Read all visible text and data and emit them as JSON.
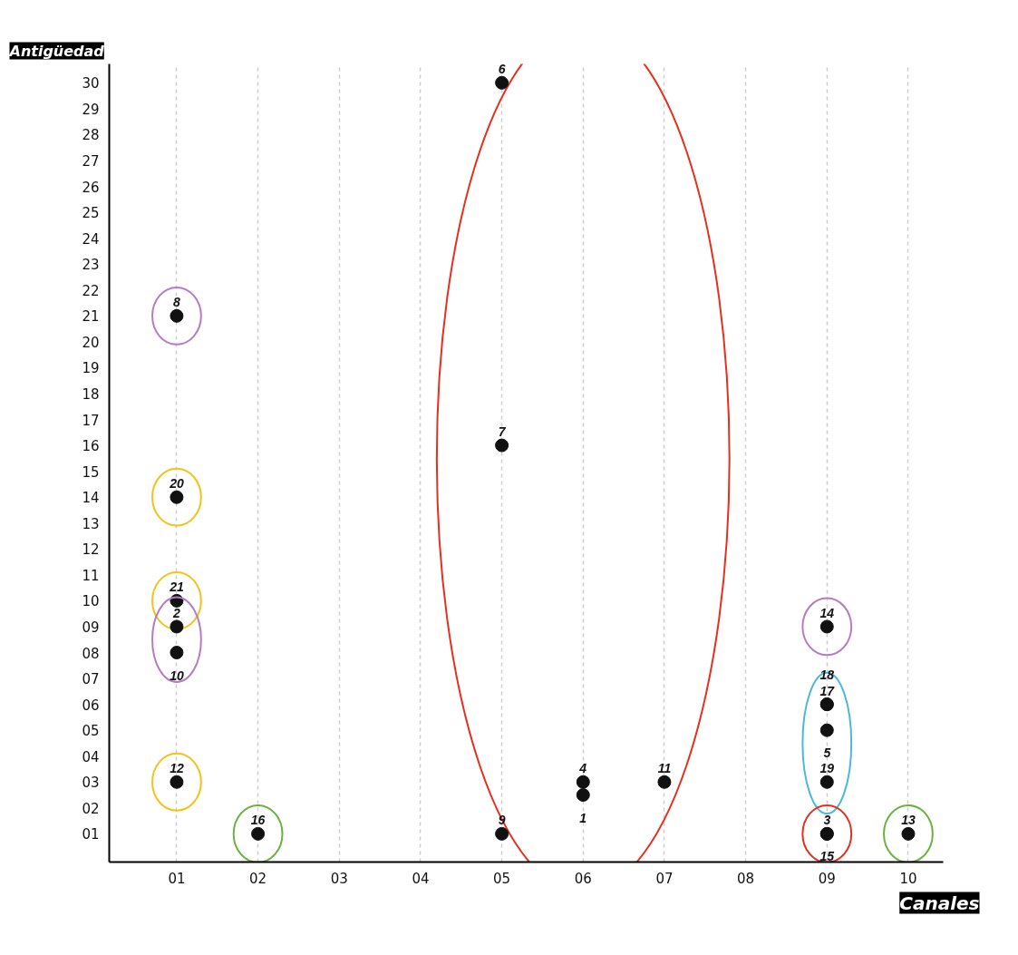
{
  "chart_data": {
    "type": "scatter",
    "xlabel": "Canales",
    "ylabel": "Antigüedad",
    "marker": "circle",
    "grid": "x",
    "xlim": [
      0.17,
      10.43
    ],
    "ylim": [
      -0.09,
      30.73
    ],
    "xticks": [
      {
        "value": 1,
        "label": "01"
      },
      {
        "value": 2,
        "label": "02"
      },
      {
        "value": 3,
        "label": "03"
      },
      {
        "value": 4,
        "label": "04"
      },
      {
        "value": 5,
        "label": "05"
      },
      {
        "value": 6,
        "label": "06"
      },
      {
        "value": 7,
        "label": "07"
      },
      {
        "value": 8,
        "label": "08"
      },
      {
        "value": 9,
        "label": "09"
      },
      {
        "value": 10,
        "label": "10"
      }
    ],
    "yticks": [
      {
        "value": 1,
        "label": "01"
      },
      {
        "value": 2,
        "label": "02"
      },
      {
        "value": 3,
        "label": "03"
      },
      {
        "value": 4,
        "label": "04"
      },
      {
        "value": 5,
        "label": "05"
      },
      {
        "value": 6,
        "label": "06"
      },
      {
        "value": 7,
        "label": "07"
      },
      {
        "value": 8,
        "label": "08"
      },
      {
        "value": 9,
        "label": "09"
      },
      10,
      11,
      12,
      13,
      14,
      15,
      16,
      17,
      18,
      19,
      20,
      21,
      22,
      23,
      24,
      25,
      26,
      27,
      28,
      29,
      30
    ],
    "series": [
      {
        "color": "#111111",
        "x": [
          1
        ],
        "values": [
          21
        ]
      },
      {
        "color": "#111111",
        "x": [
          1
        ],
        "values": [
          14
        ]
      },
      {
        "color": "#111111",
        "x": [
          1
        ],
        "values": [
          10
        ]
      },
      {
        "color": "#111111",
        "x": [
          1,
          1
        ],
        "values": [
          9,
          8
        ]
      },
      {
        "color": "#111111",
        "x": [
          1
        ],
        "values": [
          3
        ]
      },
      {
        "color": "#111111",
        "x": [
          2
        ],
        "values": [
          1
        ]
      },
      {
        "color": "#111111",
        "x": [
          5,
          5,
          5,
          6,
          6,
          7
        ],
        "values": [
          30,
          16,
          1,
          3,
          2.5,
          3
        ]
      },
      {
        "color": "#111111",
        "x": [
          9
        ],
        "values": [
          9
        ]
      },
      {
        "color": "#111111",
        "x": [
          9,
          9,
          9,
          9
        ],
        "values": [
          6,
          6,
          5,
          3
        ]
      },
      {
        "color": "#111111",
        "x": [
          9,
          9
        ],
        "values": [
          1,
          1
        ]
      },
      {
        "color": "#111111",
        "x": [
          10
        ],
        "values": [
          1
        ]
      }
    ],
    "annotations": [
      {
        "text": "8",
        "x": 1,
        "y": 21
      },
      {
        "text": "20",
        "x": 1,
        "y": 14
      },
      {
        "text": "21",
        "x": 1,
        "y": 10
      },
      {
        "text": "2",
        "x": 1,
        "y": 9
      },
      {
        "text": "10",
        "x": 1,
        "y": 8
      },
      {
        "text": "12",
        "x": 1,
        "y": 3
      },
      {
        "text": "16",
        "x": 2,
        "y": 1
      },
      {
        "text": "6",
        "x": 5,
        "y": 30
      },
      {
        "text": "7",
        "x": 5,
        "y": 16
      },
      {
        "text": "9",
        "x": 5,
        "y": 1
      },
      {
        "text": "4",
        "x": 6,
        "y": 3
      },
      {
        "text": "1",
        "x": 6,
        "y": 2.5
      },
      {
        "text": "11",
        "x": 7,
        "y": 3
      },
      {
        "text": "14",
        "x": 9,
        "y": 9
      },
      {
        "text": "17",
        "x": 9,
        "y": 6
      },
      {
        "text": "18",
        "x": 9,
        "y": 6
      },
      {
        "text": "5",
        "x": 9,
        "y": 5
      },
      {
        "text": "19",
        "x": 9,
        "y": 3
      },
      {
        "text": "3",
        "x": 9,
        "y": 1
      },
      {
        "text": "15",
        "x": 9,
        "y": 1
      },
      {
        "text": "13",
        "x": 10,
        "y": 1
      }
    ]
  }
}
